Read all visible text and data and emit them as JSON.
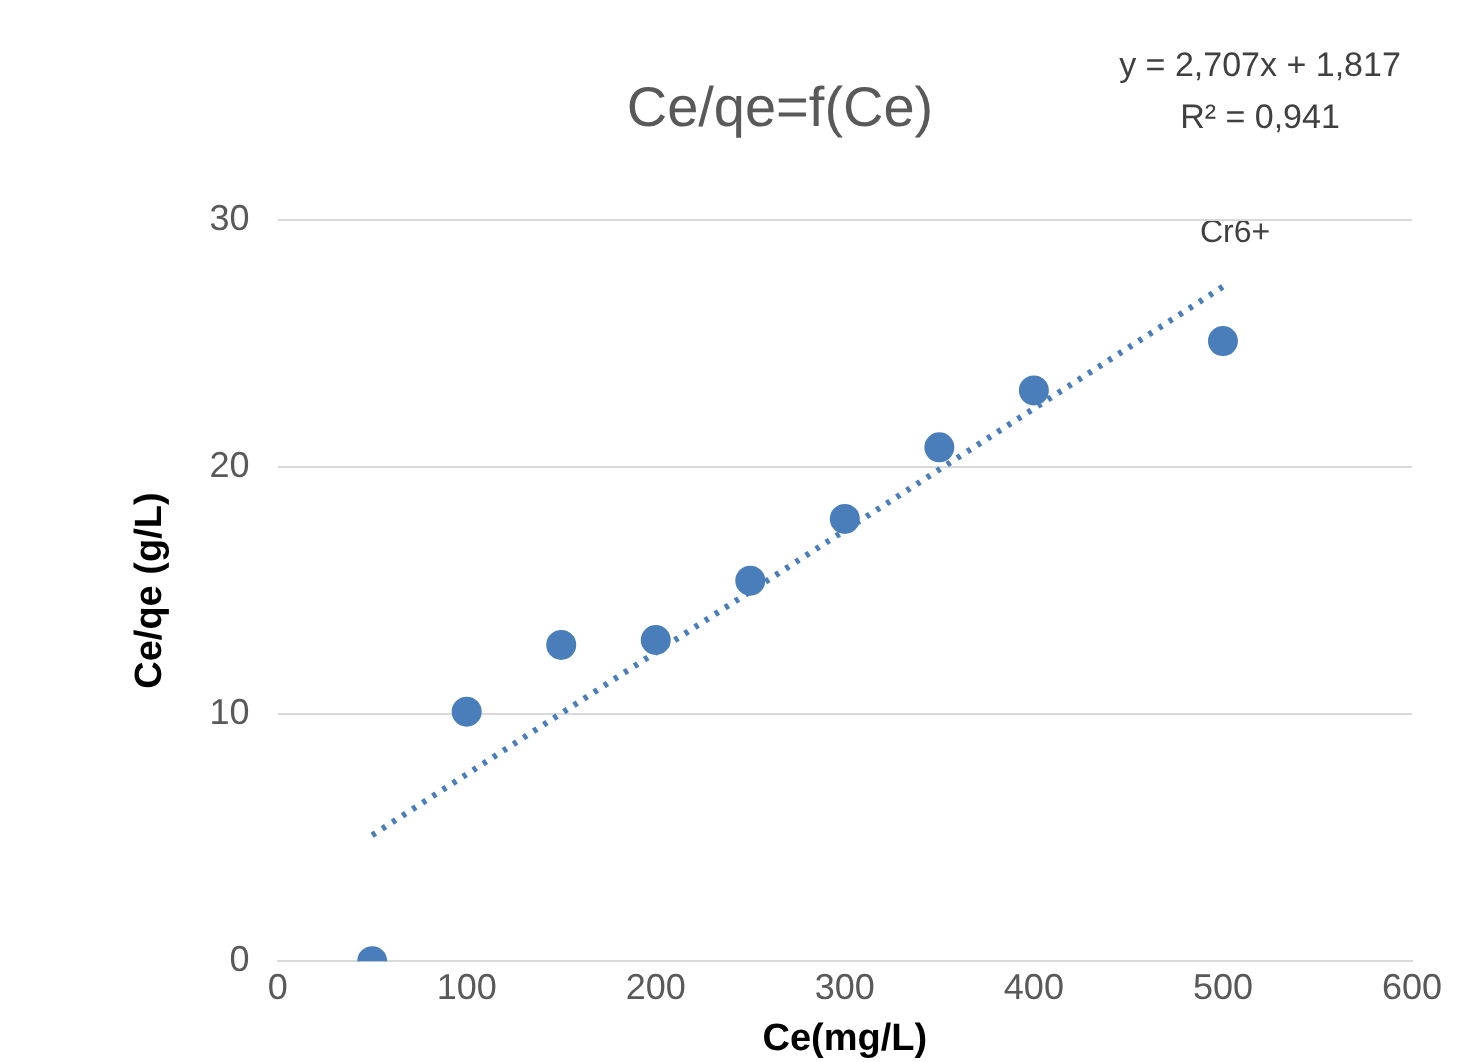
{
  "chart_data": {
    "type": "scatter",
    "title": "Ce/qe=f(Ce)",
    "xlabel": "Ce(mg/L)",
    "ylabel": "Ce/qe (g/L)",
    "x": [
      50,
      100,
      150,
      200,
      250,
      300,
      350,
      400,
      500
    ],
    "series": [
      {
        "color": "#4a7ebb",
        "marker": "circle",
        "values": [
          0,
          10.1,
          12.8,
          13.0,
          15.4,
          17.9,
          20.8,
          23.1,
          25.1
        ]
      },
      {
        "type": "line",
        "color": "#4a7ebb",
        "line_style": "dotted",
        "marker": "none",
        "x": [
          50,
          500
        ],
        "values": [
          5.1,
          27.3
        ]
      }
    ],
    "xlim": [
      0,
      600
    ],
    "xticks": [
      0,
      100,
      200,
      300,
      400,
      500,
      600
    ],
    "ylim": [
      0,
      30
    ],
    "yticks": [
      0,
      10,
      20,
      30
    ],
    "grid": "y",
    "legend": false,
    "annotations": [
      "y = 2,707x + 1,817",
      "R² = 0,941",
      "Cr6+"
    ]
  }
}
